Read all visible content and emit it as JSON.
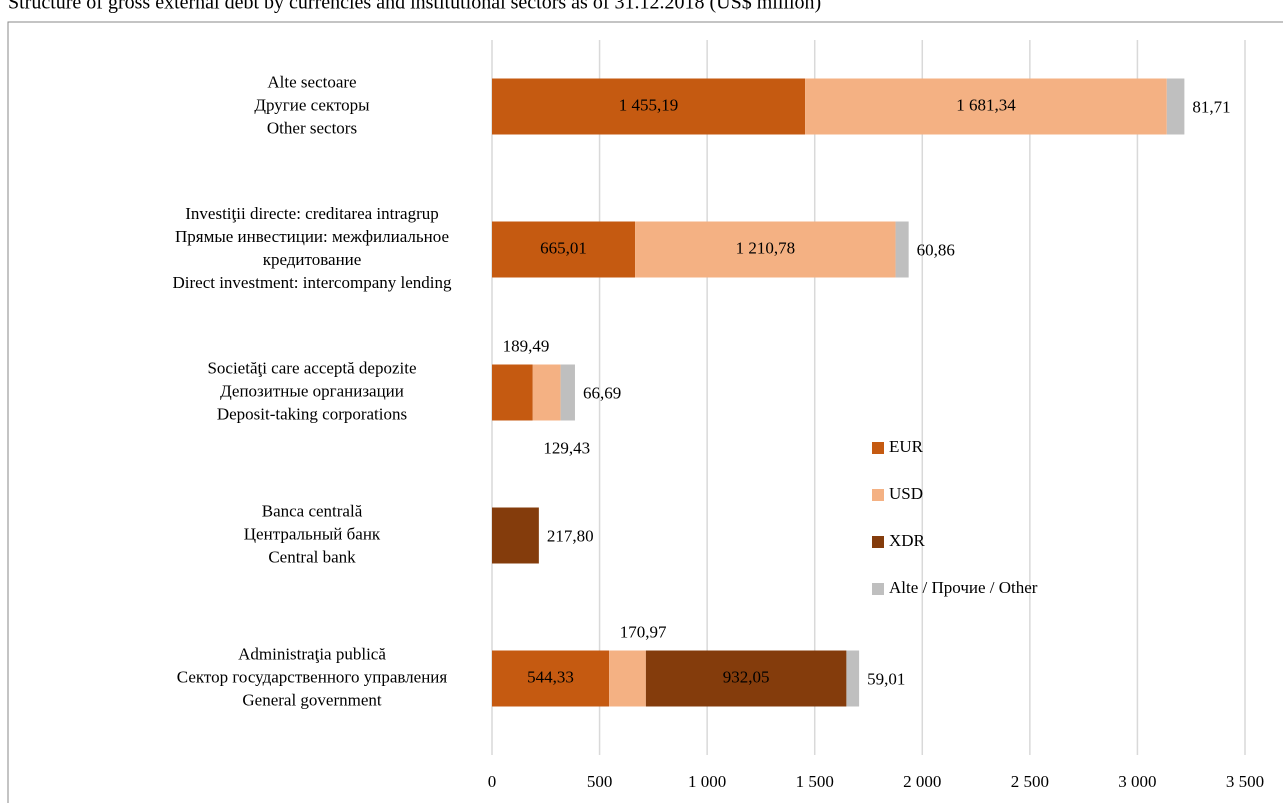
{
  "chart_data": {
    "type": "stacked-barh",
    "title": "Structure of gross external debt by currencies and institutional sectors as of 31.12.2018 (US$ million)",
    "categories": [
      [
        "Alte sectoare",
        "Другие секторы",
        "Other sectors"
      ],
      [
        "Investiţii directe: creditarea intragrup",
        "Прямые инвестиции: межфилиальное",
        "кредитование",
        "Direct investment: intercompany lending"
      ],
      [
        "Societăţi care acceptă depozite",
        "Депозитные организации",
        "Deposit-taking corporations"
      ],
      [
        "Banca centrală",
        "Центральный банк",
        "Central bank"
      ],
      [
        "Administraţia publică",
        "Сектор государственного управления",
        "General government"
      ]
    ],
    "series": [
      {
        "name": "EUR",
        "color": "#c55a11",
        "values": [
          1455.19,
          665.01,
          189.49,
          null,
          544.33
        ],
        "value_labels": [
          "1 455,19",
          "665,01",
          "189,49",
          null,
          "544,33"
        ]
      },
      {
        "name": "USD",
        "color": "#f4b183",
        "values": [
          1681.34,
          1210.78,
          129.43,
          null,
          170.97
        ],
        "value_labels": [
          "1 681,34",
          "1 210,78",
          "129,43",
          null,
          "170,97"
        ]
      },
      {
        "name": "XDR",
        "color": "#843c0c",
        "values": [
          null,
          null,
          null,
          217.8,
          932.05
        ],
        "value_labels": [
          null,
          null,
          null,
          "217,80",
          "932,05"
        ]
      },
      {
        "name": "Alte / Прочие / Other",
        "color": "#bfbfbf",
        "values": [
          81.71,
          60.86,
          66.69,
          null,
          59.01
        ],
        "value_labels": [
          "81,71",
          "60,86",
          "66,69",
          null,
          "59,01"
        ]
      }
    ],
    "xlim": [
      0,
      3500
    ],
    "xticks": [
      0,
      500,
      {
        "value": 1000,
        "label": "1 000"
      },
      {
        "value": 1500,
        "label": "1 500"
      },
      {
        "value": 2000,
        "label": "2 000"
      },
      {
        "value": 2500,
        "label": "2 500"
      },
      {
        "value": 3000,
        "label": "3 000"
      },
      {
        "value": 3500,
        "label": "3 500"
      }
    ],
    "grid": true,
    "legend": "right"
  }
}
